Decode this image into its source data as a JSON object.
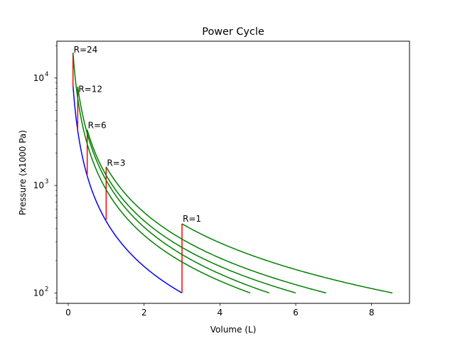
{
  "chart_data": {
    "type": "line",
    "title": "Power Cycle",
    "xlabel": "Volume (L)",
    "ylabel": "Pressure (x1000 Pa)",
    "xlim": [
      -0.3,
      9.0
    ],
    "ylim": [
      80,
      22000
    ],
    "yscale": "log",
    "grid": false,
    "xticks": [
      0,
      2,
      4,
      6,
      8
    ],
    "xtick_labels": [
      "0",
      "2",
      "4",
      "6",
      "8"
    ],
    "yticks": [
      100,
      1000,
      10000
    ],
    "ytick_labels": [
      "10",
      "10",
      "10"
    ],
    "ytick_exponents": [
      "2",
      "3",
      "4"
    ],
    "colors": {
      "compression": "#0000ff",
      "heating": "#ff0000",
      "expansion": "#008000",
      "axes": "#000000"
    },
    "compression": {
      "name": "compression",
      "v_start": 3.0,
      "v_end": 0.125,
      "p_start": 100,
      "gamma": 1.4
    },
    "annotations": [
      {
        "text": "R=1",
        "x": 3.0,
        "y": 460
      },
      {
        "text": "R=3",
        "x": 1.0,
        "y": 1520
      },
      {
        "text": "R=6",
        "x": 0.5,
        "y": 3400
      },
      {
        "text": "R=12",
        "x": 0.25,
        "y": 7400
      },
      {
        "text": "R=24",
        "x": 0.125,
        "y": 17200
      }
    ],
    "series": [
      {
        "label": "R=1",
        "v_start": 3.0,
        "p_low": 100,
        "p_high": 440,
        "v_end": 8.55,
        "p_end": 100
      },
      {
        "label": "R=3",
        "v_start": 1.0,
        "p_low": 480,
        "p_high": 1490,
        "v_end": 6.8,
        "p_end": 100
      },
      {
        "label": "R=6",
        "v_start": 0.5,
        "p_low": 1230,
        "p_high": 3300,
        "v_end": 6.0,
        "p_end": 100
      },
      {
        "label": "R=12",
        "v_start": 0.25,
        "p_low": 3300,
        "p_high": 8300,
        "v_end": 5.3,
        "p_end": 100
      },
      {
        "label": "R=24",
        "v_start": 0.125,
        "p_low": 8200,
        "p_high": 17200,
        "v_end": 4.8,
        "p_end": 100
      }
    ]
  }
}
